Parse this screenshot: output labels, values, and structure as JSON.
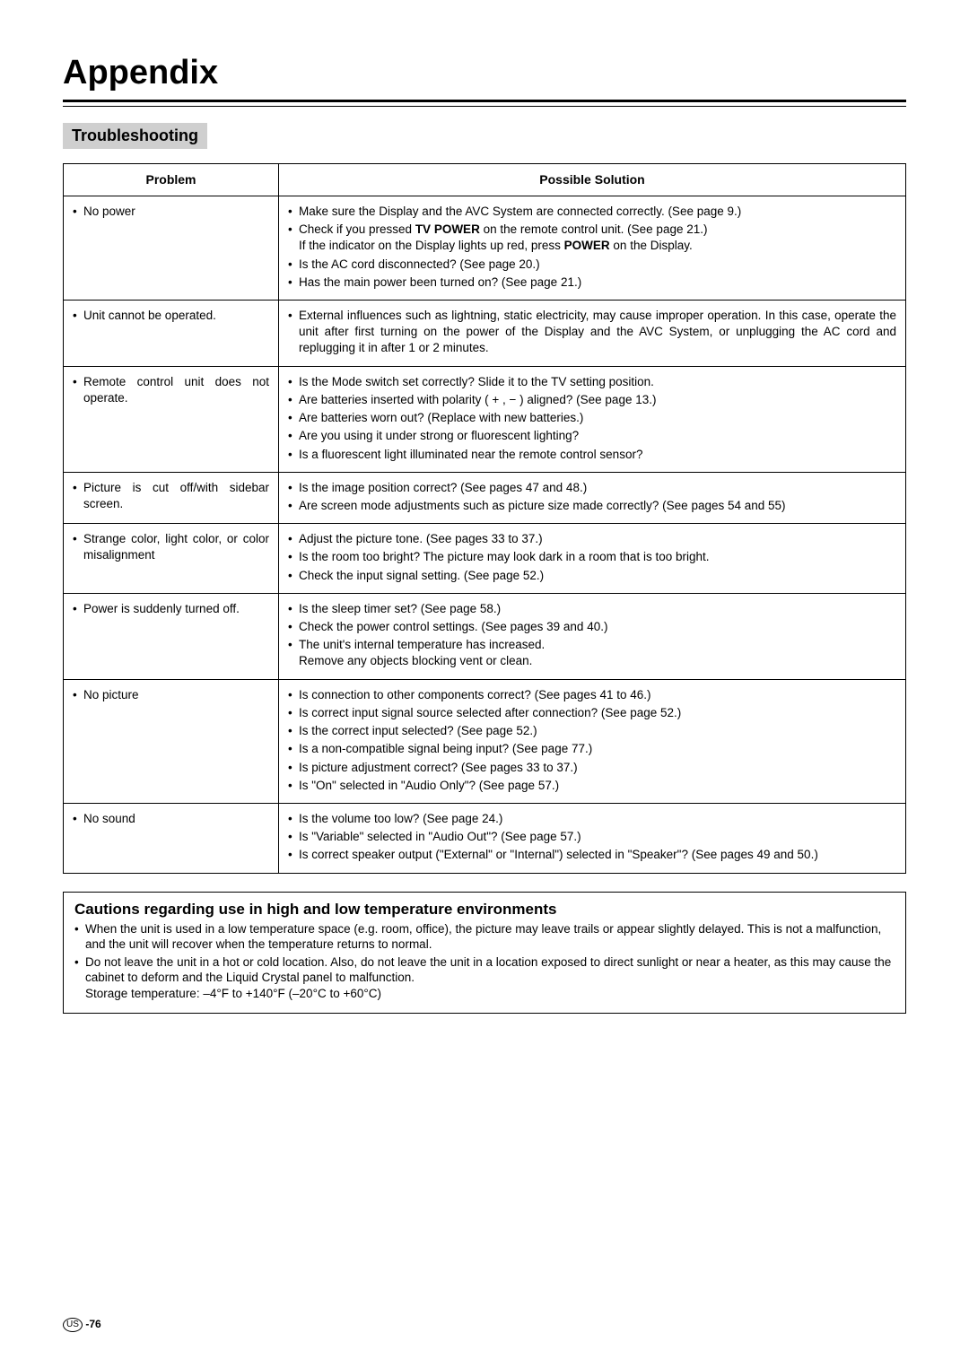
{
  "appendix_title": "Appendix",
  "section_heading": "Troubleshooting",
  "table": {
    "headers": {
      "problem": "Problem",
      "solution": "Possible Solution"
    },
    "rows": [
      {
        "problem": "No power",
        "solutions": [
          {
            "text": "Make sure the Display and the AVC System are connected correctly. (See page 9.)"
          },
          {
            "prefix": "Check if you pressed ",
            "bold": "TV POWER",
            "mid": " on the remote control unit. (See page 21.)",
            "sub_prefix": "If the indicator on the Display lights up red, press ",
            "sub_bold": "POWER",
            "sub_suffix": " on the Display."
          },
          {
            "text": "Is the AC cord disconnected? (See page 20.)"
          },
          {
            "text": "Has the main power been turned on? (See page 21.)"
          }
        ]
      },
      {
        "problem": "Unit cannot be operated.",
        "solutions": [
          {
            "text": "External influences such as lightning, static electricity, may cause improper operation. In this case, operate the unit after first turning on the power of the Display and the AVC System, or unplugging the AC cord and replugging it in after 1 or 2 minutes.",
            "justify": true
          }
        ]
      },
      {
        "problem": "Remote control unit does not operate.",
        "solutions": [
          {
            "text": "Is the Mode switch set correctly? Slide it to the TV setting position."
          },
          {
            "text": "Are batteries inserted with polarity ( + , − ) aligned? (See page 13.)"
          },
          {
            "text": "Are batteries worn out? (Replace with new batteries.)"
          },
          {
            "text": "Are you using it under strong or fluorescent lighting?"
          },
          {
            "text": "Is a fluorescent light illuminated near the remote control sensor?"
          }
        ]
      },
      {
        "problem": "Picture is cut off/with sidebar screen.",
        "solutions": [
          {
            "text": "Is the image position correct? (See pages 47 and 48.)"
          },
          {
            "text": "Are screen mode adjustments such as picture size made correctly? (See pages 54 and 55)"
          }
        ]
      },
      {
        "problem": "Strange color, light color, or color misalignment",
        "solutions": [
          {
            "text": "Adjust the picture tone. (See pages 33 to 37.)"
          },
          {
            "text": "Is the room too bright? The picture may look dark in a room that is too bright."
          },
          {
            "text": "Check the input signal setting. (See page 52.)"
          }
        ]
      },
      {
        "problem": "Power is suddenly turned off.",
        "solutions": [
          {
            "text": "Is the sleep timer set? (See page 58.)"
          },
          {
            "text": "Check the power control settings. (See pages 39 and 40.)"
          },
          {
            "text": "The unit's internal temperature has increased.",
            "sub_text": "Remove any objects blocking vent or clean."
          }
        ]
      },
      {
        "problem": "No picture",
        "solutions": [
          {
            "text": "Is connection to other components correct? (See pages 41 to 46.)"
          },
          {
            "text": "Is correct input signal source selected after connection? (See page 52.)"
          },
          {
            "text": "Is the correct input selected? (See page 52.)"
          },
          {
            "text": "Is a non-compatible signal being input? (See page 77.)"
          },
          {
            "text": "Is picture adjustment correct? (See pages 33 to 37.)"
          },
          {
            "text": "Is \"On\" selected in \"Audio Only\"? (See page 57.)"
          }
        ]
      },
      {
        "problem": "No sound",
        "solutions": [
          {
            "text": "Is the volume too low? (See page 24.)"
          },
          {
            "text": "Is \"Variable\" selected in \"Audio Out\"? (See page 57.)"
          },
          {
            "text": "Is correct speaker output (\"External\" or \"Internal\") selected in \"Speaker\"? (See pages 49 and 50.)"
          }
        ]
      }
    ]
  },
  "caution": {
    "title": "Cautions regarding use in high and low temperature environments",
    "items": [
      "When the unit is used in a low temperature space (e.g. room, office), the picture may leave trails or appear slightly delayed. This is not a malfunction, and the unit will recover when the temperature returns to normal.",
      "Do not leave the unit in a hot or cold location. Also, do not leave the unit in a location exposed to direct sunlight or near a heater, as this may cause the cabinet to deform and the Liquid Crystal panel to malfunction."
    ],
    "storage_line": "Storage temperature: –4°F to +140°F (–20°C to +60°C)"
  },
  "footer": {
    "region": "US",
    "page": "-76"
  }
}
